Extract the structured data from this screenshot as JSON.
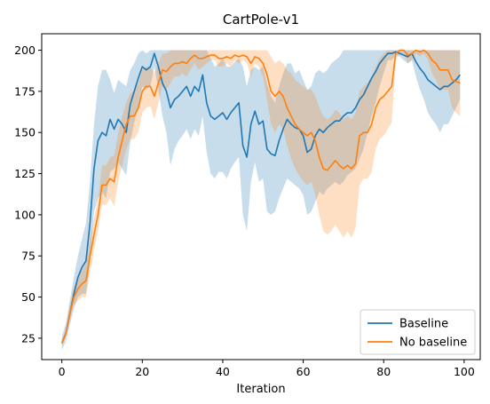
{
  "chart_data": {
    "type": "line",
    "title": "CartPole-v1",
    "xlabel": "Iteration",
    "ylabel": "",
    "xlim": [
      -5,
      104
    ],
    "ylim": [
      12,
      210
    ],
    "xticks": [
      0,
      20,
      40,
      60,
      80,
      100
    ],
    "yticks": [
      25,
      50,
      75,
      100,
      125,
      150,
      175,
      200
    ],
    "grid": false,
    "legend_position": "lower-right",
    "band_alpha": 0.25,
    "series": [
      {
        "name": "Baseline",
        "color": "#1f77b4",
        "x": [
          0,
          1,
          2,
          3,
          4,
          5,
          6,
          7,
          8,
          9,
          10,
          11,
          12,
          13,
          14,
          15,
          16,
          17,
          18,
          19,
          20,
          21,
          22,
          23,
          24,
          25,
          26,
          27,
          28,
          29,
          30,
          31,
          32,
          33,
          34,
          35,
          36,
          37,
          38,
          39,
          40,
          41,
          42,
          43,
          44,
          45,
          46,
          47,
          48,
          49,
          50,
          51,
          52,
          53,
          54,
          55,
          56,
          57,
          58,
          59,
          60,
          61,
          62,
          63,
          64,
          65,
          66,
          67,
          68,
          69,
          70,
          71,
          72,
          73,
          74,
          75,
          76,
          77,
          78,
          79,
          80,
          81,
          82,
          83,
          84,
          85,
          86,
          87,
          88,
          89,
          90,
          91,
          92,
          93,
          94,
          95,
          96,
          97,
          98,
          99
        ],
        "values": [
          22,
          28,
          40,
          52,
          62,
          68,
          72,
          95,
          128,
          145,
          150,
          148,
          158,
          152,
          158,
          155,
          150,
          167,
          175,
          183,
          190,
          188,
          190,
          198,
          190,
          180,
          175,
          165,
          170,
          172,
          175,
          178,
          172,
          178,
          175,
          185,
          168,
          160,
          158,
          160,
          162,
          158,
          162,
          165,
          168,
          142,
          135,
          155,
          163,
          155,
          157,
          140,
          137,
          136,
          145,
          152,
          158,
          155,
          153,
          152,
          148,
          138,
          140,
          148,
          152,
          150,
          153,
          155,
          157,
          157,
          160,
          162,
          162,
          165,
          170,
          173,
          178,
          183,
          187,
          192,
          195,
          198,
          198,
          199,
          198,
          197,
          196,
          198,
          193,
          189,
          186,
          182,
          180,
          178,
          176,
          178,
          178,
          180,
          182,
          185
        ],
        "upper": [
          26,
          34,
          48,
          62,
          75,
          85,
          95,
          120,
          155,
          178,
          188,
          188,
          182,
          174,
          182,
          180,
          178,
          188,
          192,
          198,
          200,
          198,
          200,
          200,
          200,
          200,
          200,
          200,
          200,
          200,
          200,
          200,
          200,
          200,
          200,
          200,
          200,
          195,
          190,
          192,
          195,
          190,
          190,
          193,
          195,
          190,
          178,
          188,
          190,
          188,
          190,
          180,
          172,
          168,
          178,
          186,
          192,
          192,
          186,
          188,
          182,
          176,
          178,
          186,
          188,
          186,
          188,
          192,
          194,
          196,
          200,
          200,
          200,
          200,
          200,
          200,
          200,
          200,
          200,
          200,
          200,
          200,
          200,
          200,
          200,
          200,
          200,
          200,
          200,
          200,
          200,
          200,
          200,
          200,
          200,
          200,
          200,
          200,
          200,
          200
        ],
        "lower": [
          18,
          23,
          33,
          43,
          50,
          52,
          52,
          72,
          102,
          110,
          114,
          110,
          126,
          128,
          132,
          128,
          124,
          144,
          156,
          166,
          178,
          176,
          178,
          190,
          176,
          160,
          150,
          130,
          140,
          145,
          148,
          152,
          146,
          152,
          148,
          160,
          138,
          125,
          122,
          126,
          126,
          122,
          128,
          132,
          135,
          100,
          90,
          120,
          132,
          120,
          122,
          102,
          100,
          102,
          110,
          116,
          122,
          120,
          118,
          116,
          112,
          100,
          102,
          108,
          114,
          112,
          116,
          118,
          120,
          118,
          120,
          124,
          126,
          128,
          134,
          140,
          150,
          160,
          168,
          178,
          186,
          194,
          194,
          197,
          196,
          194,
          192,
          194,
          184,
          176,
          170,
          162,
          158,
          155,
          150,
          155,
          155,
          160,
          165,
          170
        ]
      },
      {
        "name": "No baseline",
        "color": "#ff7f0e",
        "x": [
          0,
          1,
          2,
          3,
          4,
          5,
          6,
          7,
          8,
          9,
          10,
          11,
          12,
          13,
          14,
          15,
          16,
          17,
          18,
          19,
          20,
          21,
          22,
          23,
          24,
          25,
          26,
          27,
          28,
          29,
          30,
          31,
          32,
          33,
          34,
          35,
          36,
          37,
          38,
          39,
          40,
          41,
          42,
          43,
          44,
          45,
          46,
          47,
          48,
          49,
          50,
          51,
          52,
          53,
          54,
          55,
          56,
          57,
          58,
          59,
          60,
          61,
          62,
          63,
          64,
          65,
          66,
          67,
          68,
          69,
          70,
          71,
          72,
          73,
          74,
          75,
          76,
          77,
          78,
          79,
          80,
          81,
          82,
          83,
          84,
          85,
          86,
          87,
          88,
          89,
          90,
          91,
          92,
          93,
          94,
          95,
          96,
          97,
          98,
          99
        ],
        "values": [
          22,
          28,
          40,
          50,
          55,
          58,
          60,
          75,
          88,
          100,
          118,
          118,
          122,
          120,
          135,
          145,
          155,
          160,
          160,
          165,
          175,
          178,
          178,
          172,
          180,
          188,
          187,
          190,
          192,
          192,
          193,
          192,
          195,
          197,
          195,
          195,
          196,
          197,
          197,
          195,
          195,
          196,
          195,
          197,
          196,
          197,
          196,
          192,
          196,
          195,
          192,
          185,
          175,
          172,
          175,
          172,
          165,
          160,
          155,
          152,
          150,
          148,
          150,
          145,
          135,
          128,
          127,
          130,
          133,
          130,
          128,
          130,
          128,
          131,
          148,
          150,
          150,
          155,
          165,
          170,
          172,
          175,
          178,
          198,
          200,
          200,
          197,
          198,
          200,
          199,
          200,
          198,
          194,
          192,
          188,
          188,
          188,
          182,
          181,
          180
        ],
        "upper": [
          24,
          30,
          45,
          56,
          62,
          66,
          70,
          85,
          98,
          110,
          130,
          130,
          135,
          136,
          150,
          160,
          168,
          174,
          175,
          180,
          188,
          190,
          190,
          186,
          192,
          198,
          198,
          200,
          200,
          200,
          200,
          200,
          200,
          200,
          200,
          200,
          200,
          200,
          200,
          200,
          200,
          200,
          200,
          200,
          200,
          200,
          200,
          200,
          200,
          200,
          200,
          200,
          196,
          192,
          194,
          192,
          188,
          186,
          182,
          180,
          178,
          176,
          176,
          172,
          165,
          160,
          158,
          160,
          164,
          162,
          158,
          160,
          158,
          162,
          175,
          178,
          180,
          184,
          190,
          195,
          198,
          200,
          200,
          200,
          200,
          200,
          200,
          200,
          200,
          200,
          200,
          200,
          200,
          200,
          200,
          200,
          200,
          200,
          200,
          200
        ],
        "lower": [
          20,
          26,
          36,
          45,
          48,
          50,
          50,
          65,
          78,
          90,
          106,
          106,
          110,
          105,
          120,
          130,
          140,
          146,
          146,
          150,
          162,
          165,
          166,
          158,
          168,
          178,
          176,
          180,
          184,
          184,
          186,
          184,
          188,
          192,
          188,
          190,
          192,
          194,
          194,
          190,
          190,
          192,
          190,
          194,
          192,
          194,
          192,
          184,
          192,
          190,
          184,
          170,
          155,
          150,
          155,
          152,
          142,
          134,
          128,
          124,
          120,
          118,
          120,
          112,
          100,
          90,
          88,
          90,
          94,
          90,
          86,
          90,
          86,
          92,
          118,
          122,
          122,
          126,
          140,
          146,
          148,
          152,
          156,
          194,
          198,
          198,
          192,
          194,
          198,
          196,
          198,
          194,
          186,
          182,
          176,
          176,
          176,
          165,
          162,
          160
        ]
      }
    ]
  }
}
